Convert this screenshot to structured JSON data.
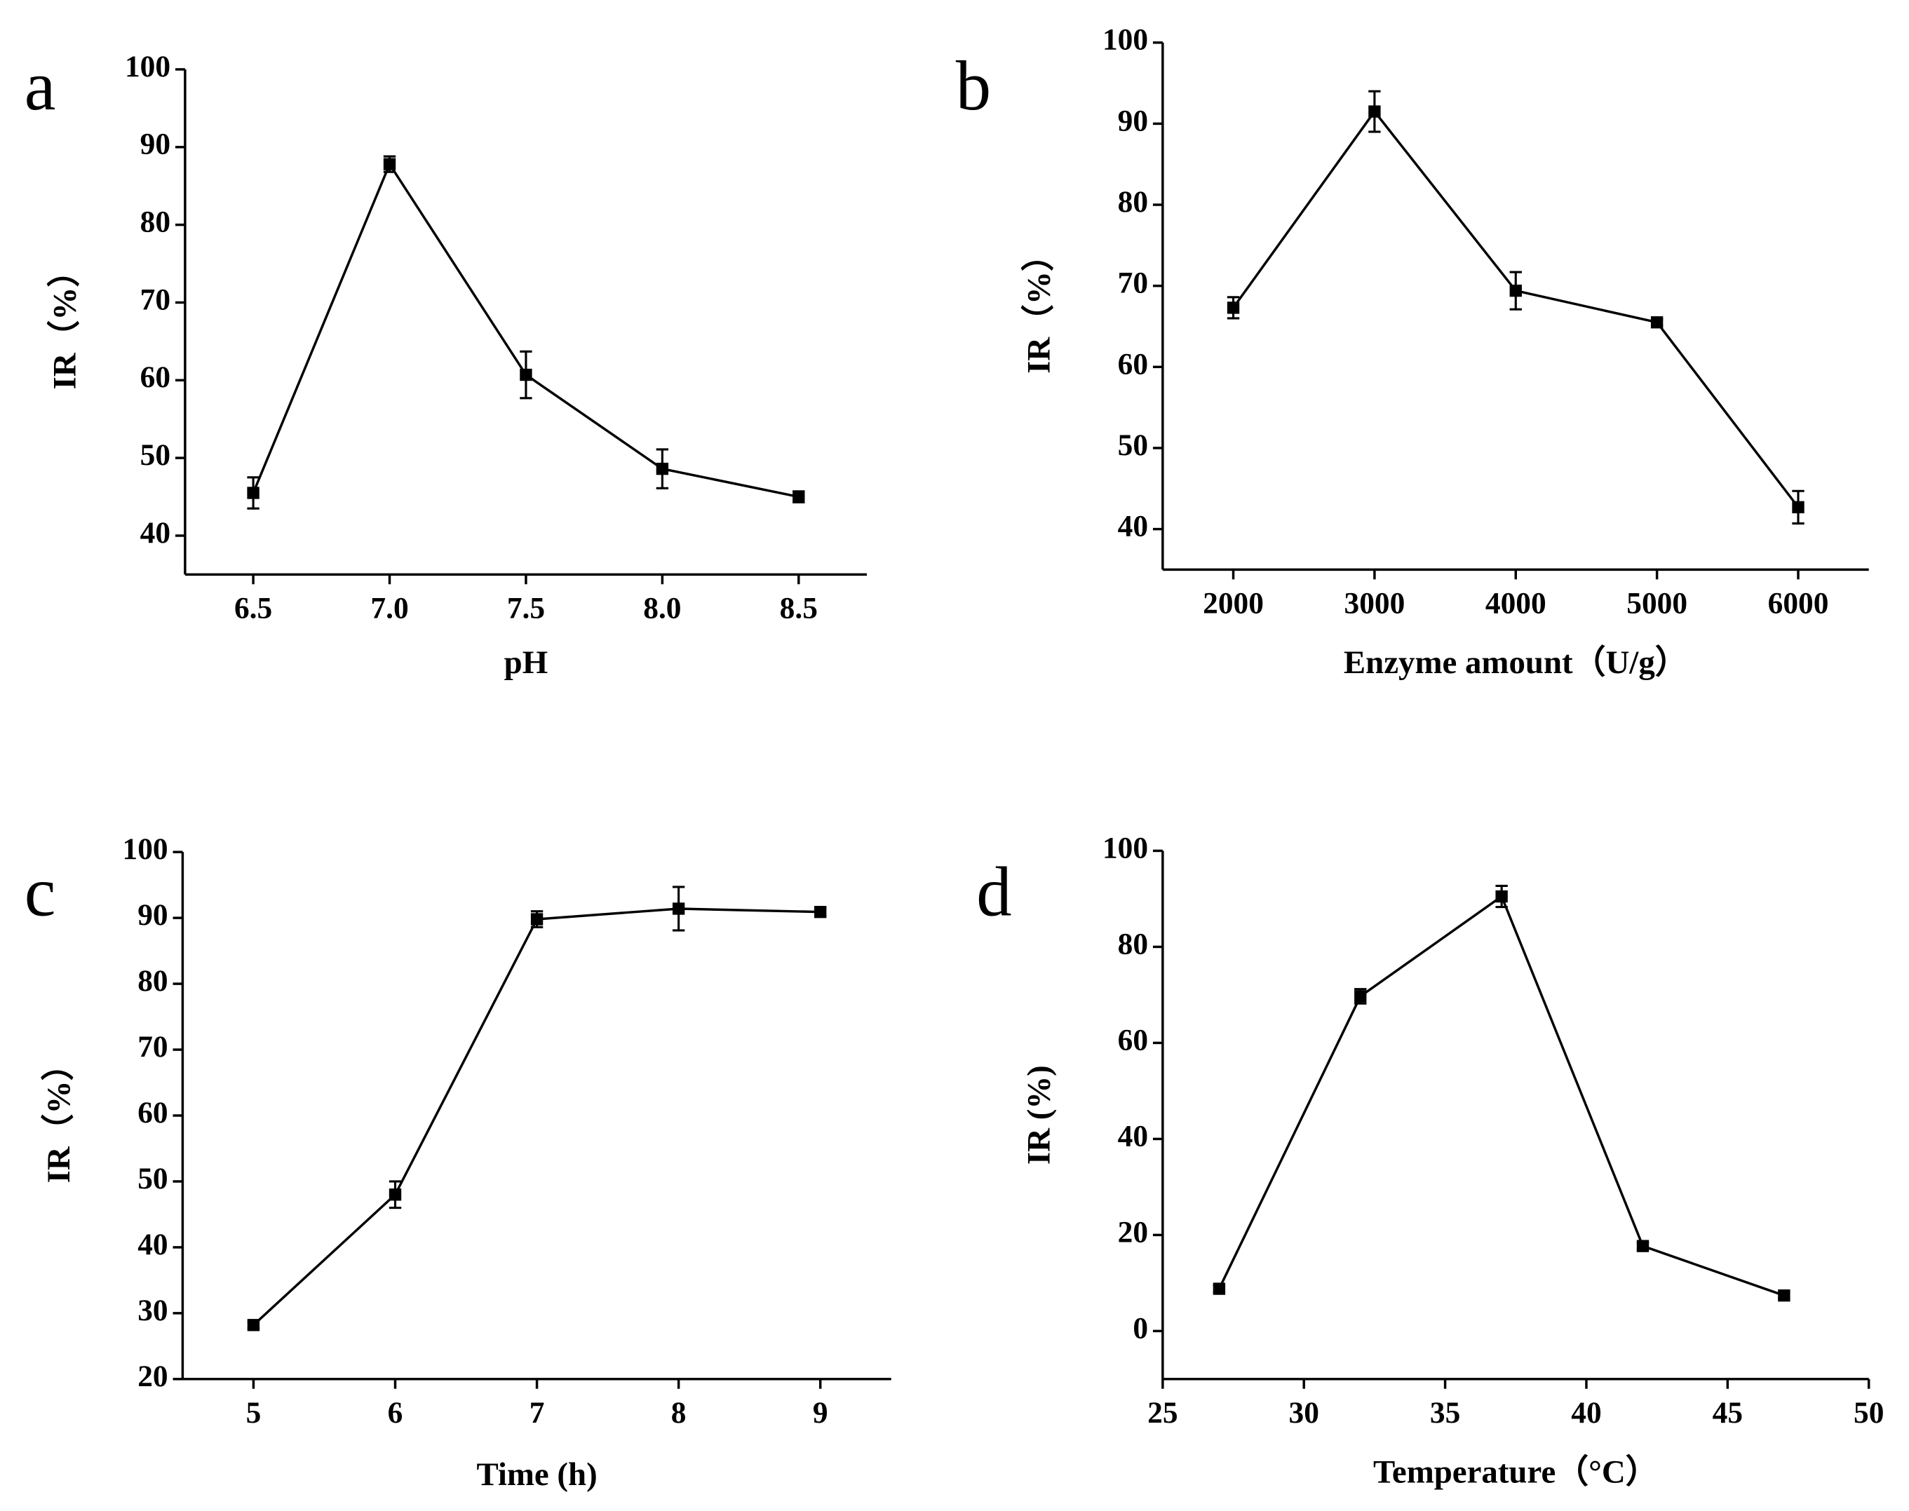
{
  "chart_data": [
    {
      "type": "line",
      "label": "a",
      "x_label": "pH",
      "y_label": "IR（%）",
      "color": "#000000",
      "x": [
        6.5,
        7.0,
        7.5,
        8.0,
        8.5
      ],
      "values": [
        45.5,
        87.8,
        60.7,
        48.6,
        45.0
      ],
      "errors": [
        2.0,
        1.0,
        3.0,
        2.5,
        0.7
      ],
      "xlim": [
        6.25,
        8.75
      ],
      "ylim": [
        35,
        100
      ],
      "xticks": [
        6.5,
        {
          "value": 7,
          "label": "7.0"
        },
        7.5,
        {
          "value": 8,
          "label": "8.0"
        },
        8.5
      ],
      "yticks": [
        40,
        50,
        60,
        70,
        80,
        90,
        100
      ]
    },
    {
      "type": "line",
      "label": "b",
      "x_label": "Enzyme amount（U/g）",
      "y_label": "IR（%）",
      "color": "#000000",
      "x": [
        2000,
        3000,
        4000,
        5000,
        6000
      ],
      "values": [
        67.3,
        91.5,
        69.4,
        65.5,
        42.7
      ],
      "errors": [
        1.3,
        2.5,
        2.3,
        0.4,
        2.0
      ],
      "xlim": [
        1500,
        6500
      ],
      "ylim": [
        35,
        100
      ],
      "xticks": [
        2000,
        3000,
        4000,
        5000,
        6000
      ],
      "yticks": [
        40,
        50,
        60,
        70,
        80,
        90,
        100
      ]
    },
    {
      "type": "line",
      "label": "c",
      "x_label": "Time (h)",
      "y_label": "IR（%）",
      "color": "#000000",
      "x": [
        5,
        6,
        7,
        8,
        9
      ],
      "values": [
        28.2,
        48.0,
        89.8,
        91.4,
        90.9
      ],
      "errors": [
        0.5,
        2.0,
        1.2,
        3.3,
        0.6
      ],
      "xlim": [
        4.5,
        9.5
      ],
      "ylim": [
        20,
        100
      ],
      "xticks": [
        5,
        6,
        7,
        8,
        9
      ],
      "yticks": [
        20,
        30,
        40,
        50,
        60,
        70,
        80,
        90,
        100
      ]
    },
    {
      "type": "line",
      "label": "d",
      "x_label": "Temperature（°C）",
      "y_label": "IR (%)",
      "color": "#000000",
      "x": [
        27,
        32,
        37,
        42,
        47
      ],
      "values": [
        8.8,
        69.7,
        90.5,
        17.7,
        7.4
      ],
      "errors": [
        0.7,
        1.5,
        2.2,
        0.7,
        0.6
      ],
      "xlim": [
        25,
        50
      ],
      "ylim": [
        -10,
        100
      ],
      "xticks": [
        25,
        30,
        35,
        40,
        45,
        50
      ],
      "yticks": [
        0,
        20,
        40,
        60,
        80,
        100
      ]
    }
  ]
}
